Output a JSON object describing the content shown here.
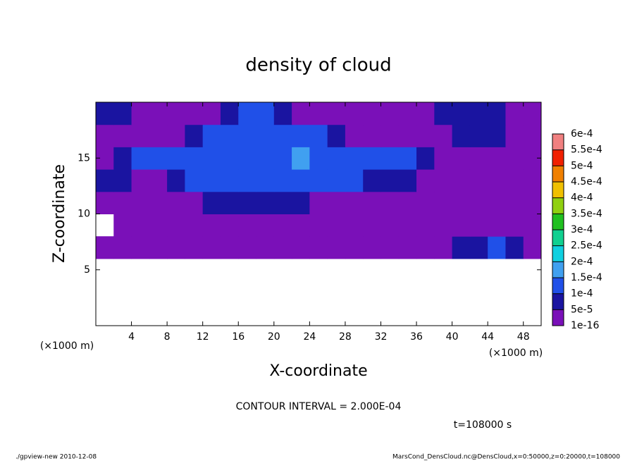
{
  "chart_data": {
    "type": "contour",
    "title": "density of cloud",
    "xlabel": "X-coordinate",
    "ylabel": "Z-coordinate",
    "x_unit": "(×1000 m)",
    "annotations": [
      "CONTOUR INTERVAL = 2.000E-04",
      "t=108000 s"
    ],
    "footer_left": "./gpview-new   2010-12-08",
    "footer_right": "MarsCond_DensCloud.nc@DensCloud,x=0:50000,z=0:20000,t=108000",
    "xlim": [
      0,
      50
    ],
    "ylim": [
      0,
      20
    ],
    "xticks": [
      4,
      8,
      12,
      16,
      20,
      24,
      28,
      32,
      36,
      40,
      44,
      48
    ],
    "yticks": [
      5,
      10,
      15
    ],
    "x": [
      1,
      3,
      5,
      7,
      9,
      11,
      13,
      15,
      17,
      19,
      21,
      23,
      25,
      27,
      29,
      31,
      33,
      35,
      37,
      39,
      41,
      43,
      45,
      47,
      49
    ],
    "y": [
      1,
      3,
      5,
      7,
      9,
      11,
      13,
      15,
      17,
      19
    ],
    "z": [
      [
        null,
        null,
        null,
        null,
        null,
        null,
        null,
        null,
        null,
        null,
        null,
        null,
        null,
        null,
        null,
        null,
        null,
        null,
        null,
        null,
        null,
        null,
        null,
        null,
        null
      ],
      [
        null,
        null,
        null,
        null,
        null,
        null,
        null,
        null,
        null,
        null,
        null,
        null,
        null,
        null,
        null,
        null,
        null,
        null,
        null,
        null,
        null,
        null,
        null,
        null,
        null
      ],
      [
        null,
        null,
        null,
        null,
        null,
        null,
        null,
        null,
        null,
        null,
        null,
        null,
        null,
        null,
        null,
        null,
        null,
        null,
        null,
        null,
        null,
        null,
        null,
        null,
        null
      ],
      [
        2e-05,
        2e-05,
        2e-05,
        2e-05,
        2e-05,
        2e-05,
        2e-05,
        2e-05,
        2e-05,
        2e-05,
        2e-05,
        2e-05,
        2e-05,
        2e-05,
        2e-05,
        2e-05,
        2e-05,
        2e-05,
        2e-05,
        2e-05,
        7e-05,
        7e-05,
        0.00012,
        7e-05,
        2e-05
      ],
      [
        null,
        2e-05,
        2e-05,
        2e-05,
        2e-05,
        2e-05,
        2e-05,
        2e-05,
        2e-05,
        2e-05,
        2e-05,
        2e-05,
        2e-05,
        2e-05,
        2e-05,
        2e-05,
        2e-05,
        2e-05,
        2e-05,
        2e-05,
        2e-05,
        2e-05,
        2e-05,
        2e-05,
        2e-05
      ],
      [
        2e-05,
        2e-05,
        2e-05,
        2e-05,
        2e-05,
        2e-05,
        7e-05,
        7e-05,
        7e-05,
        7e-05,
        7e-05,
        7e-05,
        2e-05,
        2e-05,
        2e-05,
        2e-05,
        2e-05,
        2e-05,
        2e-05,
        2e-05,
        2e-05,
        2e-05,
        2e-05,
        2e-05,
        2e-05
      ],
      [
        7e-05,
        7e-05,
        2e-05,
        2e-05,
        7e-05,
        0.00012,
        0.00012,
        0.00012,
        0.00012,
        0.00012,
        0.00012,
        0.00012,
        0.00012,
        0.00012,
        0.00012,
        7e-05,
        7e-05,
        7e-05,
        2e-05,
        2e-05,
        2e-05,
        2e-05,
        2e-05,
        2e-05,
        2e-05
      ],
      [
        2e-05,
        7e-05,
        0.00012,
        0.00012,
        0.00012,
        0.00012,
        0.00012,
        0.00012,
        0.00012,
        0.00012,
        0.00012,
        0.00016,
        0.00012,
        0.00012,
        0.00012,
        0.00012,
        0.00012,
        0.00012,
        7e-05,
        2e-05,
        2e-05,
        2e-05,
        2e-05,
        2e-05,
        2e-05
      ],
      [
        2e-05,
        2e-05,
        2e-05,
        2e-05,
        2e-05,
        7e-05,
        0.00012,
        0.00012,
        0.00012,
        0.00012,
        0.00012,
        0.00012,
        0.00012,
        7e-05,
        2e-05,
        2e-05,
        2e-05,
        2e-05,
        2e-05,
        2e-05,
        7e-05,
        7e-05,
        7e-05,
        2e-05,
        2e-05
      ],
      [
        7e-05,
        7e-05,
        2e-05,
        2e-05,
        2e-05,
        2e-05,
        2e-05,
        7e-05,
        0.00012,
        0.00012,
        7e-05,
        2e-05,
        2e-05,
        2e-05,
        2e-05,
        2e-05,
        2e-05,
        2e-05,
        2e-05,
        7e-05,
        7e-05,
        7e-05,
        7e-05,
        2e-05,
        2e-05
      ]
    ],
    "levels": [
      {
        "value": 1e-16,
        "label": "1e-16"
      },
      {
        "value": 5e-05,
        "label": "5e-5"
      },
      {
        "value": 0.0001,
        "label": "1e-4"
      },
      {
        "value": 0.00015,
        "label": "1.5e-4"
      },
      {
        "value": 0.0002,
        "label": "2e-4"
      },
      {
        "value": 0.00025,
        "label": "2.5e-4"
      },
      {
        "value": 0.0003,
        "label": "3e-4"
      },
      {
        "value": 0.00035,
        "label": "3.5e-4"
      },
      {
        "value": 0.0004,
        "label": "4e-4"
      },
      {
        "value": 0.00045,
        "label": "4.5e-4"
      },
      {
        "value": 0.0005,
        "label": "5e-4"
      },
      {
        "value": 0.00055,
        "label": "5.5e-4"
      },
      {
        "value": 0.0006,
        "label": "6e-4"
      }
    ],
    "colors": [
      "#7a10b8",
      "#1a14a0",
      "#2050e8",
      "#40a0f0",
      "#10d0e0",
      "#10d090",
      "#20c020",
      "#90d010",
      "#f0c000",
      "#f08000",
      "#f02000",
      "#f08080"
    ]
  }
}
